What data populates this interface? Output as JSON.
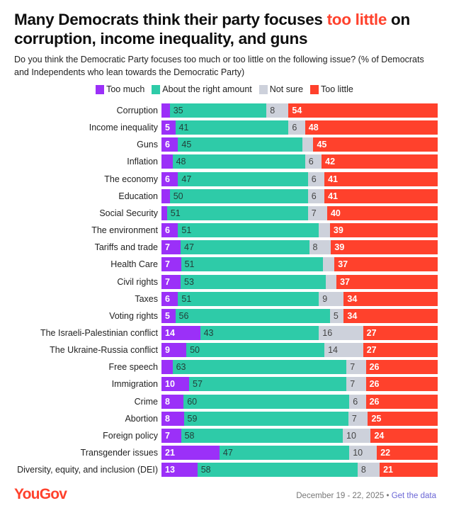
{
  "header": {
    "title_before": "Many Democrats think their party focuses ",
    "title_highlight": "too little",
    "title_after": " on corruption, income inequality, and guns",
    "subtitle": "Do you think the Democratic Party focuses too much or too little on the following issue? (% of Democrats and Independents who lean towards the Democratic Party)"
  },
  "colors": {
    "too_much": "#9b30f8",
    "about_right": "#2ecba8",
    "not_sure": "#cdd1db",
    "too_little": "#ff412c",
    "highlight": "#ff412c",
    "brand": "#ff412c"
  },
  "legend": [
    {
      "key": "too_much",
      "label": "Too much"
    },
    {
      "key": "right",
      "label": "About the right amount"
    },
    {
      "key": "not_sure",
      "label": "Not sure"
    },
    {
      "key": "too_little",
      "label": "Too little"
    }
  ],
  "chart_data": {
    "type": "bar",
    "orientation": "horizontal-stacked-100",
    "title": "Many Democrats think their party focuses too little on corruption, income inequality, and guns",
    "subtitle": "Do you think the Democratic Party focuses too much or too little on the following issue? (% of Democrats and Independents who lean towards the Democratic Party)",
    "xlabel": "",
    "ylabel": "",
    "xlim": [
      0,
      100
    ],
    "legend_position": "top-center",
    "grid": false,
    "categories": [
      "Corruption",
      "Income inequality",
      "Guns",
      "Inflation",
      "The economy",
      "Education",
      "Social Security",
      "The environment",
      "Tariffs and trade",
      "Health Care",
      "Civil rights",
      "Taxes",
      "Voting rights",
      "The Israeli-Palestinian conflict",
      "The Ukraine-Russia conflict",
      "Free speech",
      "Immigration",
      "Crime",
      "Abortion",
      "Foreign policy",
      "Transgender issues",
      "Diversity, equity, and inclusion (DEI)"
    ],
    "series": [
      {
        "name": "Too much",
        "key": "too_much",
        "values": [
          3,
          5,
          6,
          4,
          6,
          3,
          2,
          6,
          7,
          7,
          7,
          6,
          5,
          14,
          9,
          4,
          10,
          8,
          8,
          7,
          21,
          13
        ],
        "labeled": [
          false,
          true,
          true,
          false,
          true,
          false,
          false,
          true,
          true,
          true,
          true,
          true,
          true,
          true,
          true,
          false,
          true,
          true,
          true,
          true,
          true,
          true
        ]
      },
      {
        "name": "About the right amount",
        "key": "right",
        "values": [
          35,
          41,
          45,
          48,
          47,
          50,
          51,
          51,
          47,
          51,
          53,
          51,
          56,
          43,
          50,
          63,
          57,
          60,
          59,
          58,
          47,
          58
        ],
        "labeled": [
          true,
          true,
          true,
          true,
          true,
          true,
          true,
          true,
          true,
          true,
          true,
          true,
          true,
          true,
          true,
          true,
          true,
          true,
          true,
          true,
          true,
          true
        ]
      },
      {
        "name": "Not sure",
        "key": "not_sure",
        "values": [
          8,
          6,
          4,
          6,
          6,
          6,
          7,
          4,
          8,
          4,
          4,
          9,
          5,
          16,
          14,
          7,
          7,
          6,
          7,
          10,
          10,
          8
        ],
        "labeled": [
          true,
          true,
          false,
          true,
          true,
          true,
          true,
          false,
          true,
          false,
          false,
          true,
          true,
          true,
          true,
          true,
          true,
          true,
          true,
          true,
          true,
          true
        ]
      },
      {
        "name": "Too little",
        "key": "too_little",
        "values": [
          54,
          48,
          45,
          42,
          41,
          41,
          40,
          39,
          39,
          37,
          37,
          34,
          34,
          27,
          27,
          26,
          26,
          26,
          25,
          24,
          22,
          21
        ],
        "labeled": [
          true,
          true,
          true,
          true,
          true,
          true,
          true,
          true,
          true,
          true,
          true,
          true,
          true,
          true,
          true,
          true,
          true,
          true,
          true,
          true,
          true,
          true
        ]
      }
    ]
  },
  "footer": {
    "brand": "YouGov",
    "date": "December 19 - 22, 2025",
    "separator": " • ",
    "link": "Get the data"
  }
}
